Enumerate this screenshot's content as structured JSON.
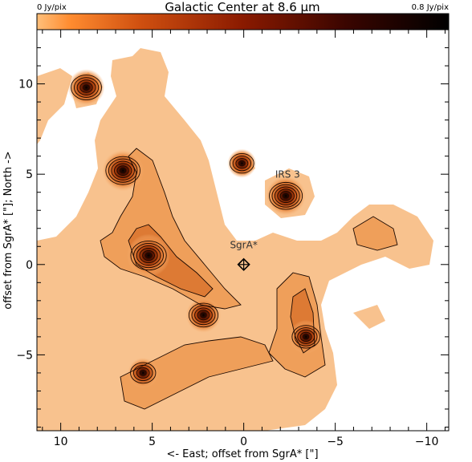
{
  "chart_data": {
    "type": "heatmap",
    "title": "Galactic Center at 8.6 μm",
    "colorbar": {
      "min_label": "0 Jy/pix",
      "max_label": "0.8 Jy/pix",
      "min": 0,
      "max": 0.8,
      "colors": [
        "#ffffff",
        "#fde0c0",
        "#f0a060",
        "#d06020",
        "#a02808",
        "#701000",
        "#300000",
        "#000000"
      ]
    },
    "xlabel": "<- East;   offset from SgrA* [\"]",
    "ylabel": "offset from SgrA* [\"];   North ->",
    "xlim": [
      11.3,
      -11.2
    ],
    "ylim": [
      -9.2,
      13.0
    ],
    "x_ticks": [
      10,
      5,
      0,
      -5,
      -10
    ],
    "x_tick_labels": [
      "10",
      "5",
      "0",
      "−5",
      "−10"
    ],
    "y_ticks": [
      -5,
      0,
      5,
      10
    ],
    "y_tick_labels": [
      "−5",
      "0",
      "5",
      "10"
    ],
    "annotations": [
      {
        "text": "IRS 3",
        "x": -2.4,
        "y": 4.8
      },
      {
        "text": "SgrA*",
        "x": 0.0,
        "y": 0.9
      }
    ],
    "marker": {
      "name": "SgrA*",
      "x": 0.0,
      "y": 0.0
    },
    "sources": [
      {
        "x": 5.2,
        "y": 0.5,
        "peak": 0.8
      },
      {
        "x": 6.6,
        "y": 5.2,
        "peak": 0.75
      },
      {
        "x": -2.3,
        "y": 3.8,
        "peak": 0.7
      },
      {
        "x": 8.6,
        "y": 9.8,
        "peak": 0.6
      },
      {
        "x": 2.2,
        "y": -2.8,
        "peak": 0.55
      },
      {
        "x": -3.4,
        "y": -4.0,
        "peak": 0.5
      },
      {
        "x": 5.5,
        "y": -6.0,
        "peak": 0.4
      },
      {
        "x": 0.1,
        "y": 5.6,
        "peak": 0.35
      }
    ]
  }
}
